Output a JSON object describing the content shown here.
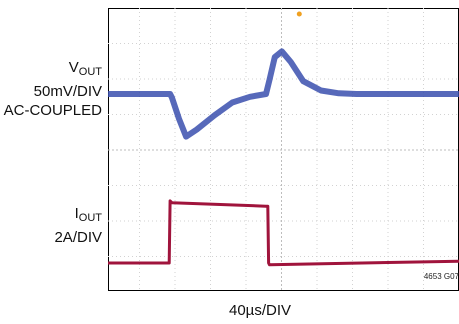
{
  "chart_data": {
    "type": "line",
    "title": "",
    "xlabel": "40µs/DIV",
    "grid": true,
    "x_divisions": 10,
    "y_divisions": 8,
    "series": [
      {
        "label_main": "V",
        "label_sub": "OUT",
        "scale": "50mV/DIV",
        "coupling": "AC-COUPLED",
        "color": "#3a4fae",
        "units": "mV",
        "x_us": [
          0,
          70,
          72,
          80,
          88,
          100,
          120,
          140,
          160,
          178,
          182,
          188,
          196,
          206,
          220,
          240,
          260,
          280,
          300,
          400
        ],
        "y": [
          0,
          0,
          -5,
          -35,
          -60,
          -50,
          -30,
          -12,
          -4,
          0,
          20,
          52,
          60,
          45,
          18,
          5,
          1,
          0,
          0,
          0
        ]
      },
      {
        "label_main": "I",
        "label_sub": "OUT",
        "scale": "2A/DIV",
        "color": "#a0143c",
        "units": "A",
        "x_us": [
          0,
          69,
          70,
          72,
          178,
          180,
          181,
          182,
          400
        ],
        "y": [
          0,
          0,
          3.5,
          3.4,
          3.2,
          3.2,
          0,
          -0.1,
          0.1
        ]
      }
    ],
    "trigger_color": "#f0a020",
    "figure_id": "4653 G07"
  }
}
